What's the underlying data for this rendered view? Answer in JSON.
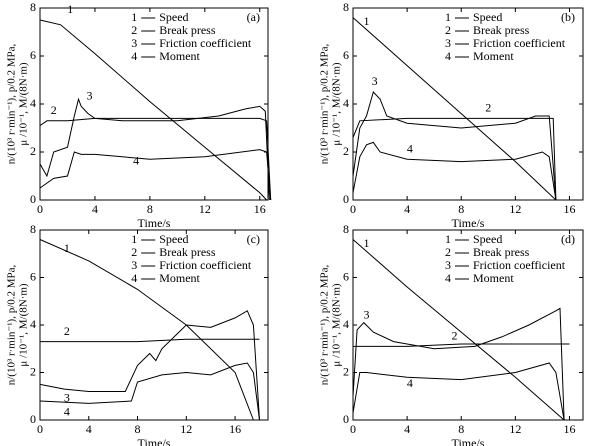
{
  "chart_data": [
    {
      "type": "line",
      "panel_label": "(a)",
      "xlabel": "Time/s",
      "ylabel": [
        "n/(10³ r·min⁻¹), p/0.2 MPa,",
        "μ /10⁻¹, M/(8N·m)"
      ],
      "xlim": [
        0,
        16.6
      ],
      "ylim": [
        0,
        8
      ],
      "xticks": [
        0,
        4,
        8,
        12,
        16
      ],
      "yticks": [
        0,
        2,
        4,
        6,
        8
      ],
      "legend": "upper right",
      "series": [
        {
          "label": "1",
          "name": "Speed",
          "color": "#000000",
          "x": [
            0,
            1.5,
            4,
            8,
            12,
            16,
            16.5
          ],
          "values": [
            7.5,
            7.3,
            6.1,
            4.1,
            2.2,
            0.3,
            0
          ]
        },
        {
          "label": "2",
          "name": "Break press",
          "color": "#000000",
          "x": [
            0,
            0.5,
            2,
            4,
            8,
            12,
            16,
            16.5,
            16.8
          ],
          "values": [
            3.1,
            3.3,
            3.3,
            3.4,
            3.4,
            3.4,
            3.4,
            3.3,
            0
          ]
        },
        {
          "label": "3",
          "name": "Friction coefficient",
          "color": "#000000",
          "x": [
            0,
            0.5,
            1,
            2,
            2.5,
            2.8,
            3,
            3.5,
            4,
            6,
            10,
            13,
            15,
            16,
            16.4,
            16.7
          ],
          "values": [
            1.5,
            1.0,
            2.0,
            2.2,
            3.5,
            4.2,
            3.9,
            3.6,
            3.4,
            3.3,
            3.3,
            3.5,
            3.8,
            3.9,
            3.7,
            0
          ]
        },
        {
          "label": "4",
          "name": "Moment",
          "color": "#000000",
          "x": [
            0,
            1,
            2,
            2.5,
            3,
            4,
            8,
            12,
            16,
            16.5,
            16.8
          ],
          "values": [
            0.5,
            0.9,
            1.0,
            2.0,
            1.9,
            1.9,
            1.7,
            1.8,
            2.1,
            2.0,
            0
          ]
        }
      ]
    },
    {
      "type": "line",
      "panel_label": "(b)",
      "xlabel": "Time/s",
      "ylabel": [
        "n/(10³ r·min⁻¹), p/0.2 MPa,",
        "μ /10⁻¹, M/(8N·m)"
      ],
      "xlim": [
        0,
        17
      ],
      "ylim": [
        0,
        8
      ],
      "xticks": [
        0,
        4,
        8,
        12,
        16
      ],
      "yticks": [
        0,
        2,
        4,
        6,
        8
      ],
      "legend": "upper right",
      "series": [
        {
          "label": "1",
          "name": "Speed",
          "color": "#000000",
          "x": [
            0,
            4,
            8,
            12,
            15
          ],
          "values": [
            7.6,
            5.6,
            3.6,
            1.6,
            0
          ]
        },
        {
          "label": "2",
          "name": "Break press",
          "color": "#000000",
          "x": [
            0,
            0.5,
            4,
            8,
            12,
            14.8,
            15
          ],
          "values": [
            2.6,
            3.3,
            3.4,
            3.4,
            3.4,
            3.4,
            0
          ]
        },
        {
          "label": "3",
          "name": "Friction coefficient",
          "color": "#000000",
          "x": [
            0,
            0.5,
            1,
            1.5,
            2,
            2.5,
            4,
            8,
            12,
            13.5,
            14.5,
            15
          ],
          "values": [
            1.0,
            3.0,
            3.5,
            4.5,
            4.2,
            3.5,
            3.2,
            3.0,
            3.2,
            3.5,
            3.5,
            0
          ]
        },
        {
          "label": "4",
          "name": "Moment",
          "color": "#000000",
          "x": [
            0,
            0.5,
            1,
            1.5,
            2,
            4,
            8,
            12,
            14,
            14.5,
            15
          ],
          "values": [
            0.3,
            1.8,
            2.3,
            2.4,
            2.0,
            1.7,
            1.6,
            1.7,
            2.0,
            1.8,
            0
          ]
        }
      ]
    },
    {
      "type": "line",
      "panel_label": "(c)",
      "xlabel": "Time/s",
      "ylabel": [
        "n/(10³ r·min⁻¹), p/0.2 MPa,",
        "μ /10⁻¹, M/(8N·m)"
      ],
      "xlim": [
        0,
        18.7
      ],
      "ylim": [
        0,
        8
      ],
      "xticks": [
        0,
        4,
        8,
        12,
        16
      ],
      "yticks": [
        0,
        2,
        4,
        6,
        8
      ],
      "legend": "upper right",
      "series": [
        {
          "label": "1",
          "name": "Speed",
          "color": "#000000",
          "x": [
            0,
            4,
            8,
            12,
            16,
            17.5
          ],
          "values": [
            7.6,
            6.7,
            5.5,
            4.0,
            2.0,
            0
          ]
        },
        {
          "label": "2",
          "name": "Break press",
          "color": "#000000",
          "x": [
            0,
            4,
            8,
            12,
            16,
            18
          ],
          "values": [
            3.3,
            3.3,
            3.3,
            3.4,
            3.4,
            3.4
          ]
        },
        {
          "label": "3",
          "name": "Friction coefficient",
          "color": "#000000",
          "x": [
            0,
            2,
            4,
            7,
            8,
            9,
            9.5,
            10,
            11,
            12,
            14,
            16,
            17,
            17.5,
            18
          ],
          "values": [
            1.5,
            1.3,
            1.2,
            1.2,
            2.3,
            2.8,
            2.5,
            3.0,
            3.5,
            4.0,
            3.9,
            4.3,
            4.6,
            4.0,
            0
          ]
        },
        {
          "label": "4",
          "name": "Moment",
          "color": "#000000",
          "x": [
            0,
            4,
            7.5,
            8,
            10,
            12,
            14,
            16,
            17,
            17.5,
            18
          ],
          "values": [
            0.8,
            0.7,
            0.8,
            1.6,
            1.9,
            2.0,
            1.9,
            2.3,
            2.4,
            2.0,
            0
          ]
        }
      ]
    },
    {
      "type": "line",
      "panel_label": "(d)",
      "xlabel": "Time/s",
      "ylabel": [
        "n/(10³ r·min⁻¹), p/0.2 MPa,",
        "μ /10⁻¹, M/(8N·m)"
      ],
      "xlim": [
        0,
        17
      ],
      "ylim": [
        0,
        8
      ],
      "xticks": [
        0,
        4,
        8,
        12,
        16
      ],
      "yticks": [
        0,
        2,
        4,
        6,
        8
      ],
      "legend": "upper right",
      "series": [
        {
          "label": "1",
          "name": "Speed",
          "color": "#000000",
          "x": [
            0,
            4,
            8,
            12,
            15.6
          ],
          "values": [
            7.6,
            5.6,
            3.7,
            1.8,
            0
          ]
        },
        {
          "label": "2",
          "name": "Break press",
          "color": "#000000",
          "x": [
            0,
            4,
            8,
            12,
            16
          ],
          "values": [
            3.1,
            3.1,
            3.2,
            3.2,
            3.2
          ]
        },
        {
          "label": "3",
          "name": "Friction coefficient",
          "color": "#000000",
          "x": [
            0,
            0.3,
            0.8,
            1.5,
            3,
            6,
            9,
            11,
            13,
            15,
            15.3,
            15.6
          ],
          "values": [
            1.0,
            3.8,
            4.1,
            3.7,
            3.3,
            3.0,
            3.1,
            3.5,
            4.0,
            4.6,
            4.7,
            0
          ]
        },
        {
          "label": "4",
          "name": "Moment",
          "color": "#000000",
          "x": [
            0,
            0.5,
            1,
            4,
            8,
            12,
            14.5,
            15,
            15.6
          ],
          "values": [
            0.3,
            2.0,
            2.0,
            1.8,
            1.7,
            2.0,
            2.4,
            2.0,
            0
          ]
        }
      ]
    }
  ]
}
